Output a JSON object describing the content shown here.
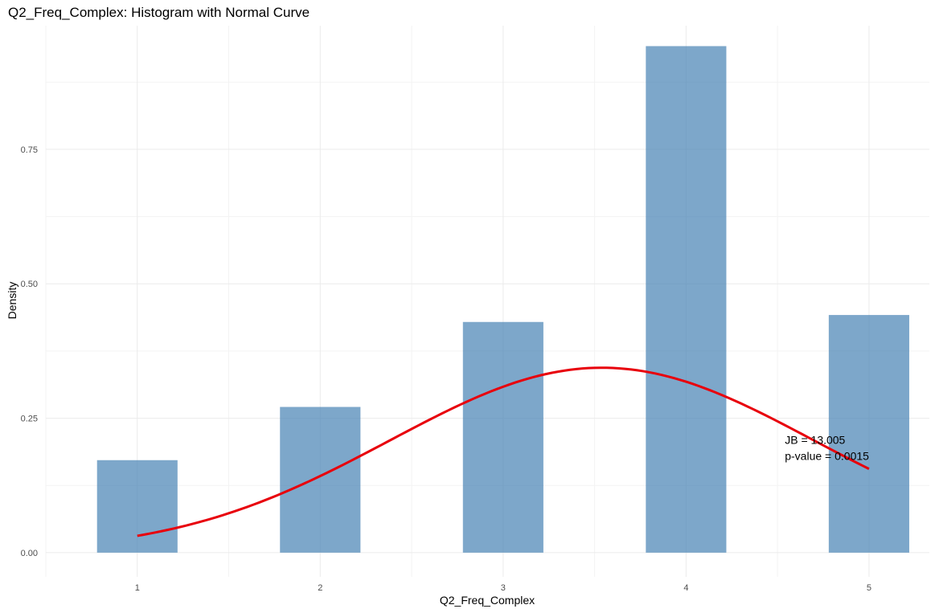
{
  "chart_data": {
    "type": "bar",
    "title": "Q2_Freq_Complex: Histogram with Normal Curve",
    "xlabel": "Q2_Freq_Complex",
    "ylabel": "Density",
    "x": [
      1,
      2,
      3,
      4,
      5
    ],
    "x_ticks": [
      "1",
      "2",
      "3",
      "4",
      "5"
    ],
    "xlim": [
      0.5,
      5.33
    ],
    "ylim": [
      -0.045,
      0.98
    ],
    "y_ticks": [
      0,
      0.25,
      0.5,
      0.75
    ],
    "y_tick_labels": [
      "0.00",
      "0.25",
      "0.50",
      "0.75"
    ],
    "bar_width": 0.44,
    "series": [
      {
        "name": "",
        "values": [
          0.172,
          0.271,
          0.429,
          0.942,
          0.442
        ],
        "color": "#4682b4",
        "opacity": 0.7
      }
    ],
    "normal_curve": {
      "mean": 3.54,
      "sd": 1.16,
      "x_range": [
        1,
        5
      ],
      "color": "#e8000b"
    },
    "grid": true,
    "annotation": {
      "lines": [
        "JB = 13.005",
        "p-value = 0.0015"
      ],
      "x": 4.54,
      "y": [
        0.21,
        0.18
      ]
    }
  }
}
